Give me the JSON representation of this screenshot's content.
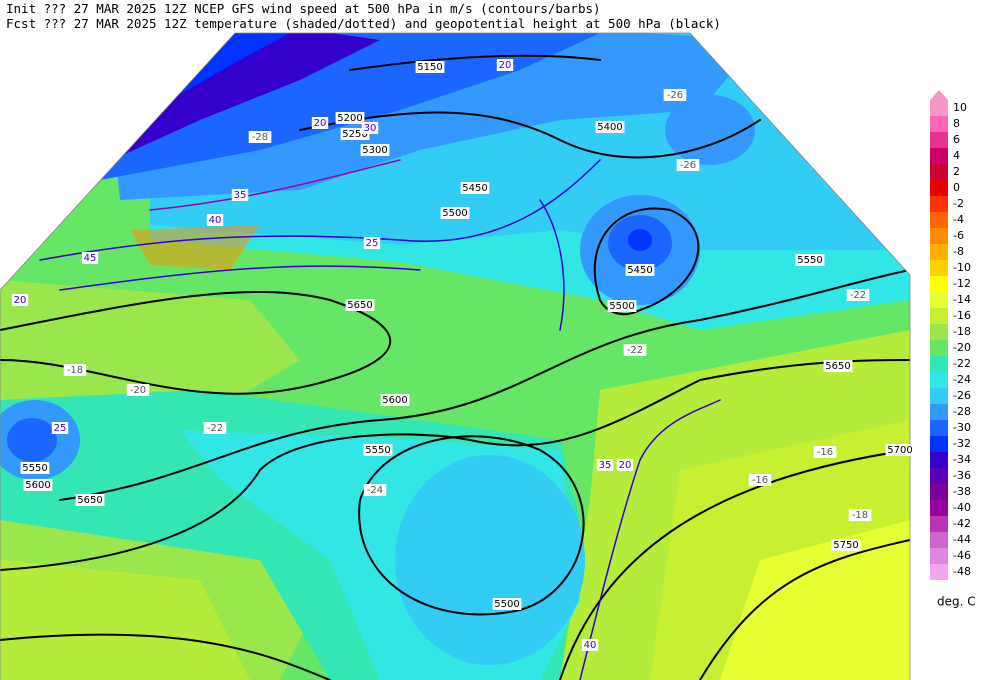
{
  "header": {
    "init": "Init  ??? 27 MAR 2025 12Z  NCEP GFS wind speed at 500 hPa in m/s (contours/barbs)",
    "fcst": "Fcst ??? 27 MAR 2025 12Z  temperature (shaded/dotted) and geopotential height at 500 hPa (black)"
  },
  "colorbar": {
    "levels": [
      10,
      8,
      6,
      4,
      2,
      0,
      -2,
      -4,
      -6,
      -8,
      -10,
      -12,
      -14,
      -16,
      -18,
      -20,
      -22,
      -24,
      -26,
      -28,
      -30,
      -32,
      -34,
      -36,
      -38,
      -40,
      -42,
      -44,
      -46,
      -48
    ],
    "colors": [
      "#f799c8",
      "#ff66b3",
      "#e6338f",
      "#cc0066",
      "#cc0033",
      "#e60000",
      "#ff3300",
      "#ff6600",
      "#ff8c00",
      "#ffb000",
      "#ffd000",
      "#ffff00",
      "#e6ff33",
      "#c8f032",
      "#99e64d",
      "#66e666",
      "#33e6b3",
      "#33e6e6",
      "#33ccf5",
      "#3399ff",
      "#1a66ff",
      "#0033ff",
      "#3300cc",
      "#5c00b3",
      "#7a0099",
      "#9900a0",
      "#b833b8",
      "#cc66cc",
      "#e085e0",
      "#f0a6f0"
    ],
    "unit": "deg. C"
  },
  "height_labels": [
    "5150",
    "5200",
    "5250",
    "5300",
    "5400",
    "5450",
    "5500",
    "5450",
    "5500",
    "5550",
    "5650",
    "5600",
    "5550",
    "5650",
    "5550",
    "5600",
    "5650",
    "5700",
    "5750",
    "5500"
  ],
  "temperature_labels": [
    "-26",
    "-26",
    "-22",
    "-20",
    "-22",
    "-24",
    "-16",
    "-16",
    "-18",
    "-22",
    "-28",
    "-18"
  ],
  "wind_labels": [
    "20",
    "25",
    "30",
    "35",
    "40",
    "45",
    "20",
    "25",
    "20",
    "20",
    "35",
    "40"
  ]
}
